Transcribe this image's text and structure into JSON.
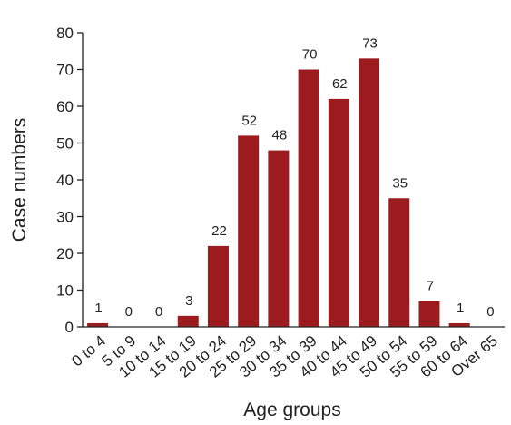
{
  "chart_data": {
    "type": "bar",
    "title": "",
    "xlabel": "Age groups",
    "ylabel": "Case numbers",
    "categories": [
      "0 to 4",
      "5 to 9",
      "10 to 14",
      "15 to 19",
      "20 to 24",
      "25 to 29",
      "30 to 34",
      "35 to 39",
      "40 to 44",
      "45 to 49",
      "50 to 54",
      "55 to 59",
      "60 to 64",
      "Over 65"
    ],
    "values": [
      1,
      0,
      0,
      3,
      22,
      52,
      48,
      70,
      62,
      73,
      35,
      7,
      1,
      0
    ],
    "data_labels": [
      "1",
      "0",
      "0",
      "3",
      "22",
      "52",
      "48",
      "70",
      "62",
      "73",
      "35",
      "7",
      "1",
      "0"
    ],
    "ylim": [
      0,
      80
    ],
    "yticks": [
      0,
      10,
      20,
      30,
      40,
      50,
      60,
      70,
      80
    ],
    "grid": false,
    "legend": "none",
    "bar_color": "#9b1b1f"
  }
}
